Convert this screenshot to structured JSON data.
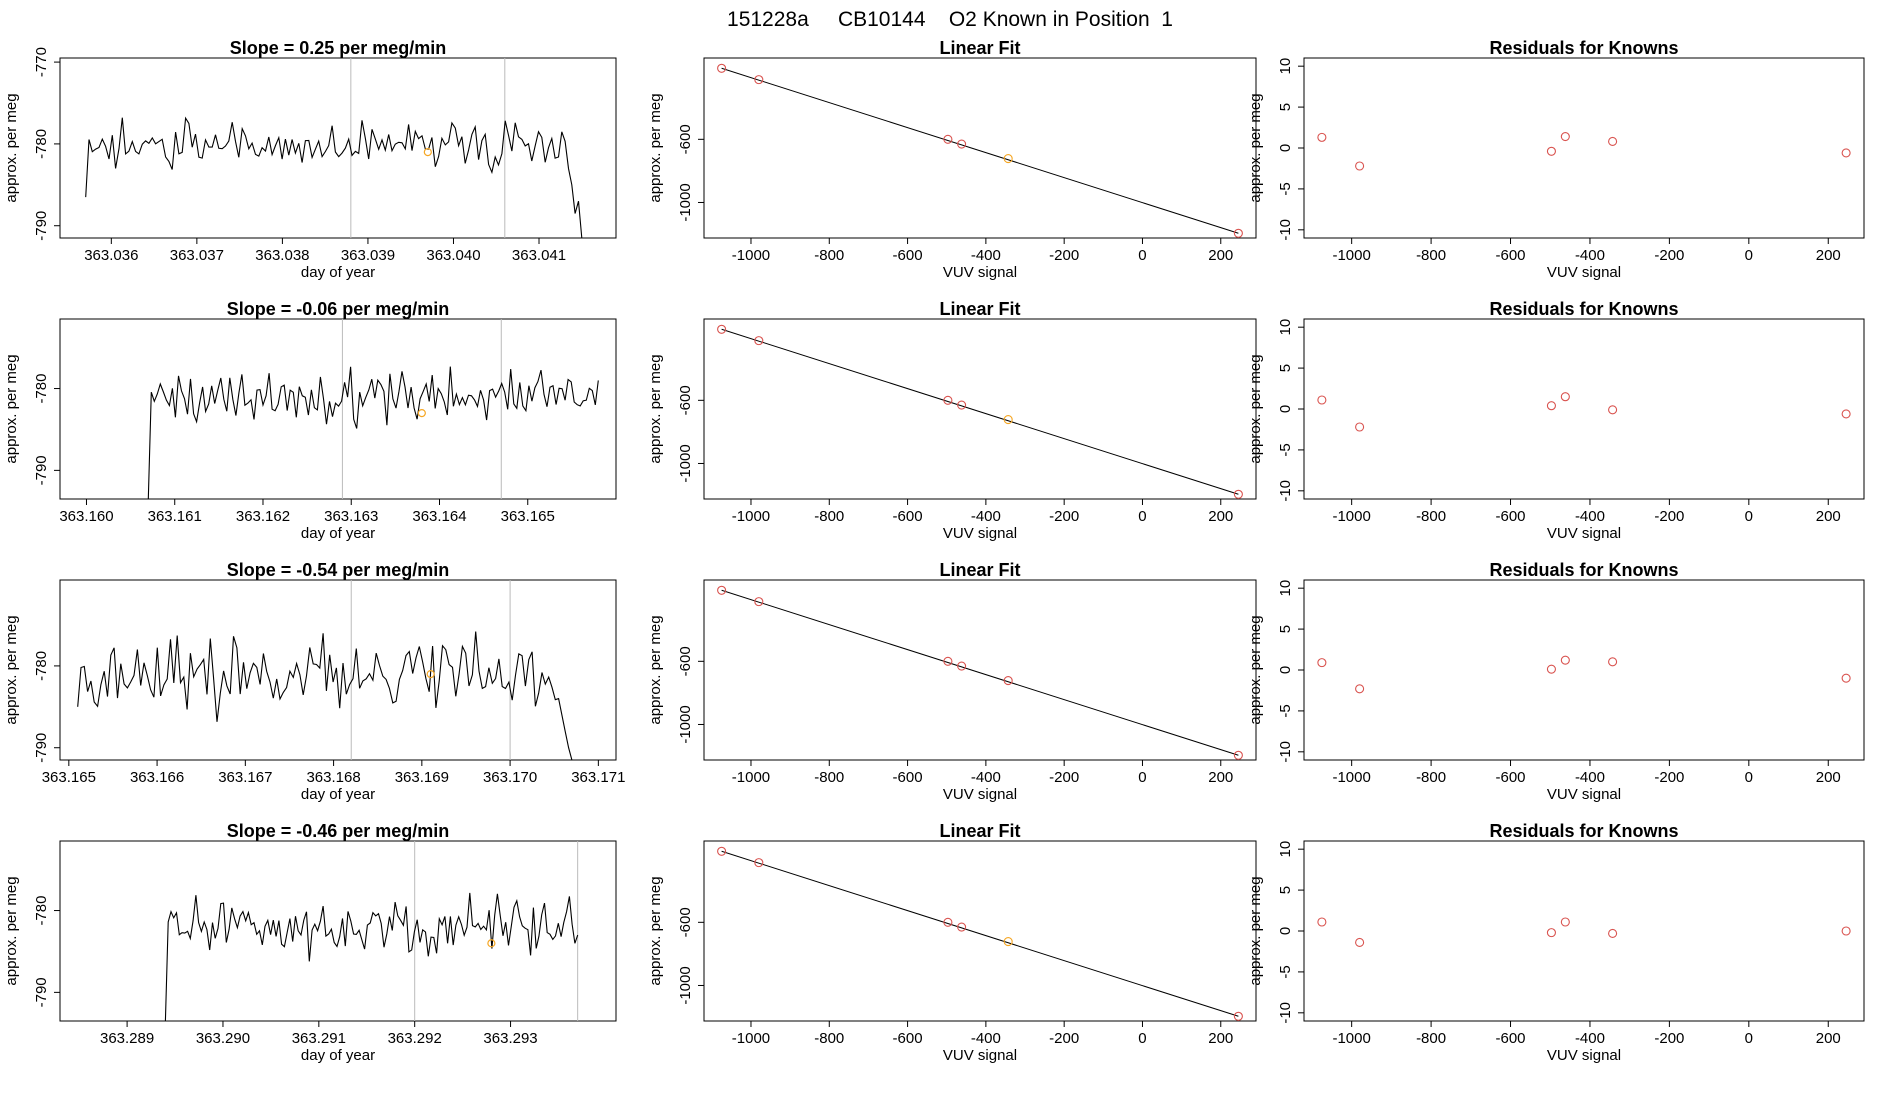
{
  "figure_title": "151228a     CB10144    O2 Known in Position  1",
  "colors": {
    "line": "#000000",
    "vline": "#bbbbbb",
    "orange": "#f5a623",
    "red": "#d9534f",
    "box": "#000000"
  },
  "chart_data": [
    {
      "row": 1,
      "timeseries": {
        "type": "line",
        "title": "Slope =  0.25  per meg/min",
        "xlabel": "day of year",
        "ylabel": "approx. per meg",
        "xlim": [
          363.0354,
          363.0419
        ],
        "ylim": [
          -791.5,
          -769.5
        ],
        "xticks": [
          "363.036",
          "363.037",
          "363.038",
          "363.039",
          "363.040",
          "363.041"
        ],
        "yticks": [
          -790,
          -780,
          -770
        ],
        "t_start": 363.0357,
        "t_end": 363.0415,
        "base": -780,
        "amp": 2.5,
        "seed": 11,
        "start_y": -786.5,
        "tail": [
          -783,
          -785,
          -788.5,
          -787,
          -791.5
        ],
        "vlines": [
          363.0388,
          363.0406
        ],
        "marker": {
          "x": 363.0397,
          "y": -781
        }
      },
      "fit": {
        "type": "scatter",
        "title": "Linear Fit",
        "xlabel": "VUV signal",
        "ylabel": "approx. per meg",
        "xlim": [
          -1120,
          290
        ],
        "ylim": [
          -1225,
          -85
        ],
        "xticks": [
          -1000,
          -800,
          -600,
          -400,
          -200,
          0,
          200
        ],
        "yticks": [
          -600,
          -1000
        ],
        "line": [
          [
            -1075,
            -150
          ],
          [
            245,
            -1195
          ]
        ],
        "points": [
          [
            -1075,
            -150
          ],
          [
            -980,
            -222
          ],
          [
            -497,
            -600
          ],
          [
            -462,
            -630
          ],
          [
            -343,
            -722
          ],
          [
            245,
            -1195
          ]
        ],
        "highlight": 4
      },
      "residuals": {
        "type": "scatter",
        "title": "Residuals for Knowns",
        "xlabel": "VUV signal",
        "ylabel": "approx. per meg",
        "xlim": [
          -1120,
          290
        ],
        "ylim": [
          -11,
          11
        ],
        "xticks": [
          -1000,
          -800,
          -600,
          -400,
          -200,
          0,
          200
        ],
        "yticks": [
          10,
          5,
          0,
          -5,
          -10
        ],
        "points": [
          [
            -1075,
            1.3
          ],
          [
            -980,
            -2.2
          ],
          [
            -497,
            -0.4
          ],
          [
            -462,
            1.4
          ],
          [
            -343,
            0.8
          ],
          [
            245,
            -0.6
          ]
        ]
      }
    },
    {
      "row": 2,
      "timeseries": {
        "type": "line",
        "title": "Slope =  -0.06  per meg/min",
        "xlabel": "day of year",
        "ylabel": "approx. per meg",
        "xlim": [
          363.1597,
          363.166
        ],
        "ylim": [
          -793.5,
          -771.5
        ],
        "xticks": [
          "363.160",
          "363.161",
          "363.162",
          "363.163",
          "363.164",
          "363.165"
        ],
        "yticks": [
          -790,
          -780
        ],
        "t_start": 363.1607,
        "t_end": 363.1658,
        "base": -781,
        "amp": 2.5,
        "seed": 23,
        "start_y": -793.5,
        "tail": [
          -782,
          -779
        ],
        "vlines": [
          363.1629,
          363.1647
        ],
        "marker": {
          "x": 363.1638,
          "y": -783
        }
      },
      "fit": {
        "type": "scatter",
        "title": "Linear Fit",
        "xlabel": "VUV signal",
        "ylabel": "approx. per meg",
        "xlim": [
          -1120,
          290
        ],
        "ylim": [
          -1225,
          -85
        ],
        "xticks": [
          -1000,
          -800,
          -600,
          -400,
          -200,
          0,
          200
        ],
        "yticks": [
          -600,
          -1000
        ],
        "line": [
          [
            -1075,
            -150
          ],
          [
            245,
            -1195
          ]
        ],
        "points": [
          [
            -1075,
            -150
          ],
          [
            -980,
            -222
          ],
          [
            -497,
            -600
          ],
          [
            -462,
            -630
          ],
          [
            -343,
            -722
          ],
          [
            245,
            -1195
          ]
        ],
        "highlight": 4
      },
      "residuals": {
        "type": "scatter",
        "title": "Residuals for Knowns",
        "xlabel": "VUV signal",
        "ylabel": "approx. per meg",
        "xlim": [
          -1120,
          290
        ],
        "ylim": [
          -11,
          11
        ],
        "xticks": [
          -1000,
          -800,
          -600,
          -400,
          -200,
          0,
          200
        ],
        "yticks": [
          10,
          5,
          0,
          -5,
          -10
        ],
        "points": [
          [
            -1075,
            1.1
          ],
          [
            -980,
            -2.2
          ],
          [
            -497,
            0.4
          ],
          [
            -462,
            1.5
          ],
          [
            -343,
            -0.1
          ],
          [
            245,
            -0.6
          ]
        ]
      }
    },
    {
      "row": 3,
      "timeseries": {
        "type": "line",
        "title": "Slope =  -0.54  per meg/min",
        "xlabel": "day of year",
        "ylabel": "approx. per meg",
        "xlim": [
          363.1649,
          363.1712
        ],
        "ylim": [
          -791.5,
          -769.5
        ],
        "xticks": [
          "363.165",
          "363.166",
          "363.167",
          "363.168",
          "363.169",
          "363.170",
          "363.171"
        ],
        "yticks": [
          -790,
          -780
        ],
        "t_start": 363.1651,
        "t_end": 363.1707,
        "base": -781,
        "amp": 3.5,
        "seed": 37,
        "start_y": -785,
        "tail": [
          -784,
          -786,
          -788,
          -790,
          -791.5
        ],
        "vlines": [
          363.1682,
          363.17
        ],
        "marker": {
          "x": 363.1691,
          "y": -781
        }
      },
      "fit": {
        "type": "scatter",
        "title": "Linear Fit",
        "xlabel": "VUV signal",
        "ylabel": "approx. per meg",
        "xlim": [
          -1120,
          290
        ],
        "ylim": [
          -1225,
          -85
        ],
        "xticks": [
          -1000,
          -800,
          -600,
          -400,
          -200,
          0,
          200
        ],
        "yticks": [
          -600,
          -1000
        ],
        "line": [
          [
            -1075,
            -150
          ],
          [
            245,
            -1195
          ]
        ],
        "points": [
          [
            -1075,
            -150
          ],
          [
            -980,
            -222
          ],
          [
            -497,
            -600
          ],
          [
            -462,
            -630
          ],
          [
            -343,
            -722
          ],
          [
            245,
            -1195
          ]
        ],
        "highlight": -1
      },
      "residuals": {
        "type": "scatter",
        "title": "Residuals for Knowns",
        "xlabel": "VUV signal",
        "ylabel": "approx. per meg",
        "xlim": [
          -1120,
          290
        ],
        "ylim": [
          -11,
          11
        ],
        "xticks": [
          -1000,
          -800,
          -600,
          -400,
          -200,
          0,
          200
        ],
        "yticks": [
          10,
          5,
          0,
          -5,
          -10
        ],
        "points": [
          [
            -1075,
            0.9
          ],
          [
            -980,
            -2.3
          ],
          [
            -497,
            0.1
          ],
          [
            -462,
            1.2
          ],
          [
            -343,
            1.0
          ],
          [
            245,
            -1.0
          ]
        ]
      }
    },
    {
      "row": 4,
      "timeseries": {
        "type": "line",
        "title": "Slope =  -0.46  per meg/min",
        "xlabel": "day of year",
        "ylabel": "approx. per meg",
        "xlim": [
          363.2883,
          363.2941
        ],
        "ylim": [
          -793.5,
          -771.5
        ],
        "xticks": [
          "363.289",
          "363.290",
          "363.291",
          "363.292",
          "363.293"
        ],
        "yticks": [
          -790,
          -780
        ],
        "t_start": 363.2894,
        "t_end": 363.2937,
        "base": -782,
        "amp": 2.5,
        "seed": 51,
        "start_y": -793.5,
        "tail": [
          -784,
          -783
        ],
        "vlines": [
          363.292,
          363.2937
        ],
        "marker": {
          "x": 363.2928,
          "y": -784
        }
      },
      "fit": {
        "type": "scatter",
        "title": "Linear Fit",
        "xlabel": "VUV signal",
        "ylabel": "approx. per meg",
        "xlim": [
          -1120,
          290
        ],
        "ylim": [
          -1225,
          -85
        ],
        "xticks": [
          -1000,
          -800,
          -600,
          -400,
          -200,
          0,
          200
        ],
        "yticks": [
          -600,
          -1000
        ],
        "line": [
          [
            -1075,
            -150
          ],
          [
            245,
            -1195
          ]
        ],
        "points": [
          [
            -1075,
            -150
          ],
          [
            -980,
            -222
          ],
          [
            -497,
            -600
          ],
          [
            -462,
            -630
          ],
          [
            -343,
            -722
          ],
          [
            245,
            -1195
          ]
        ],
        "highlight": 4
      },
      "residuals": {
        "type": "scatter",
        "title": "Residuals for Knowns",
        "xlabel": "VUV signal",
        "ylabel": "approx. per meg",
        "xlim": [
          -1120,
          290
        ],
        "ylim": [
          -11,
          11
        ],
        "xticks": [
          -1000,
          -800,
          -600,
          -400,
          -200,
          0,
          200
        ],
        "yticks": [
          10,
          5,
          0,
          -5,
          -10
        ],
        "points": [
          [
            -1075,
            1.1
          ],
          [
            -980,
            -1.4
          ],
          [
            -497,
            -0.2
          ],
          [
            -462,
            1.1
          ],
          [
            -343,
            -0.3
          ],
          [
            245,
            0.0
          ]
        ]
      }
    }
  ]
}
